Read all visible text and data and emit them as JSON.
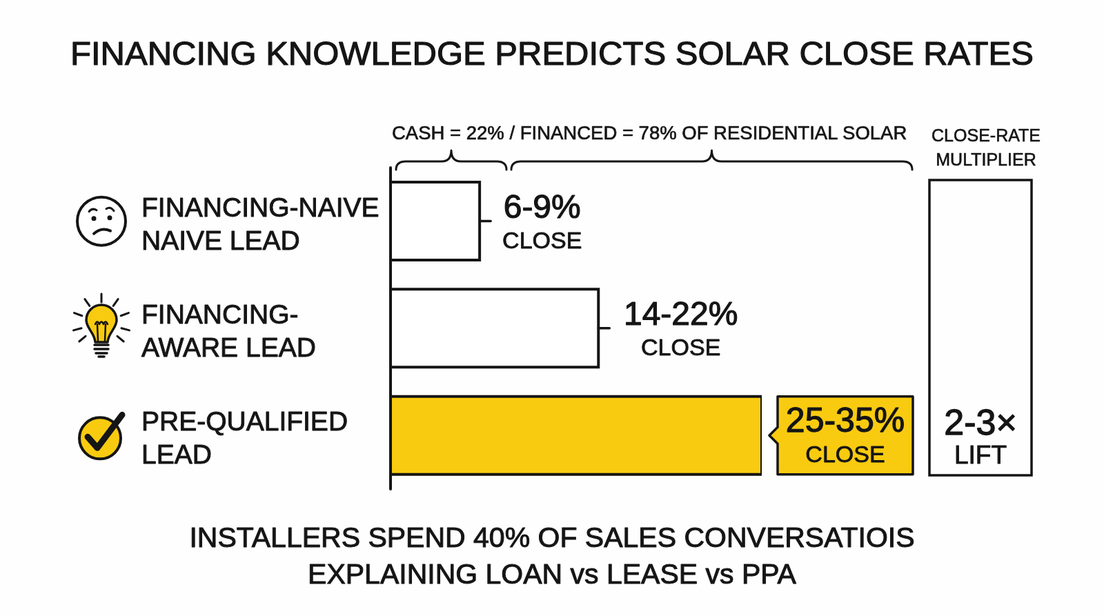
{
  "chart_data": {
    "type": "bar",
    "orientation": "horizontal",
    "title": "FINANCING KNOWLEDGE PREDICTS SOLAR CLOSE RATES",
    "categories": [
      "FINANCING-NAIVE NAIVE LEAD",
      "FINANCING-AWARE LEAD",
      "PRE-QUALIFIED LEAD"
    ],
    "values": [
      6,
      14,
      25
    ],
    "colors": [
      "#ffffff",
      "#ffffff",
      "#f9cb10"
    ],
    "tick_labels": "y",
    "value_labels": [
      "6-9% CLOSE",
      "14-22% CLOSE",
      "25-35% CLOSE"
    ],
    "annotations": [
      "CASH = 22% / FINANCED = 78% OF RESIDENTIAL SOLAR",
      "CLOSE-RATE MULTIPLIER",
      "2-3× LIFT",
      "INSTALLERS SPEND 40% OF SALES CONVERSATIOIS EXPLAINING LOAN vs LEASE vs PPA"
    ]
  }
}
